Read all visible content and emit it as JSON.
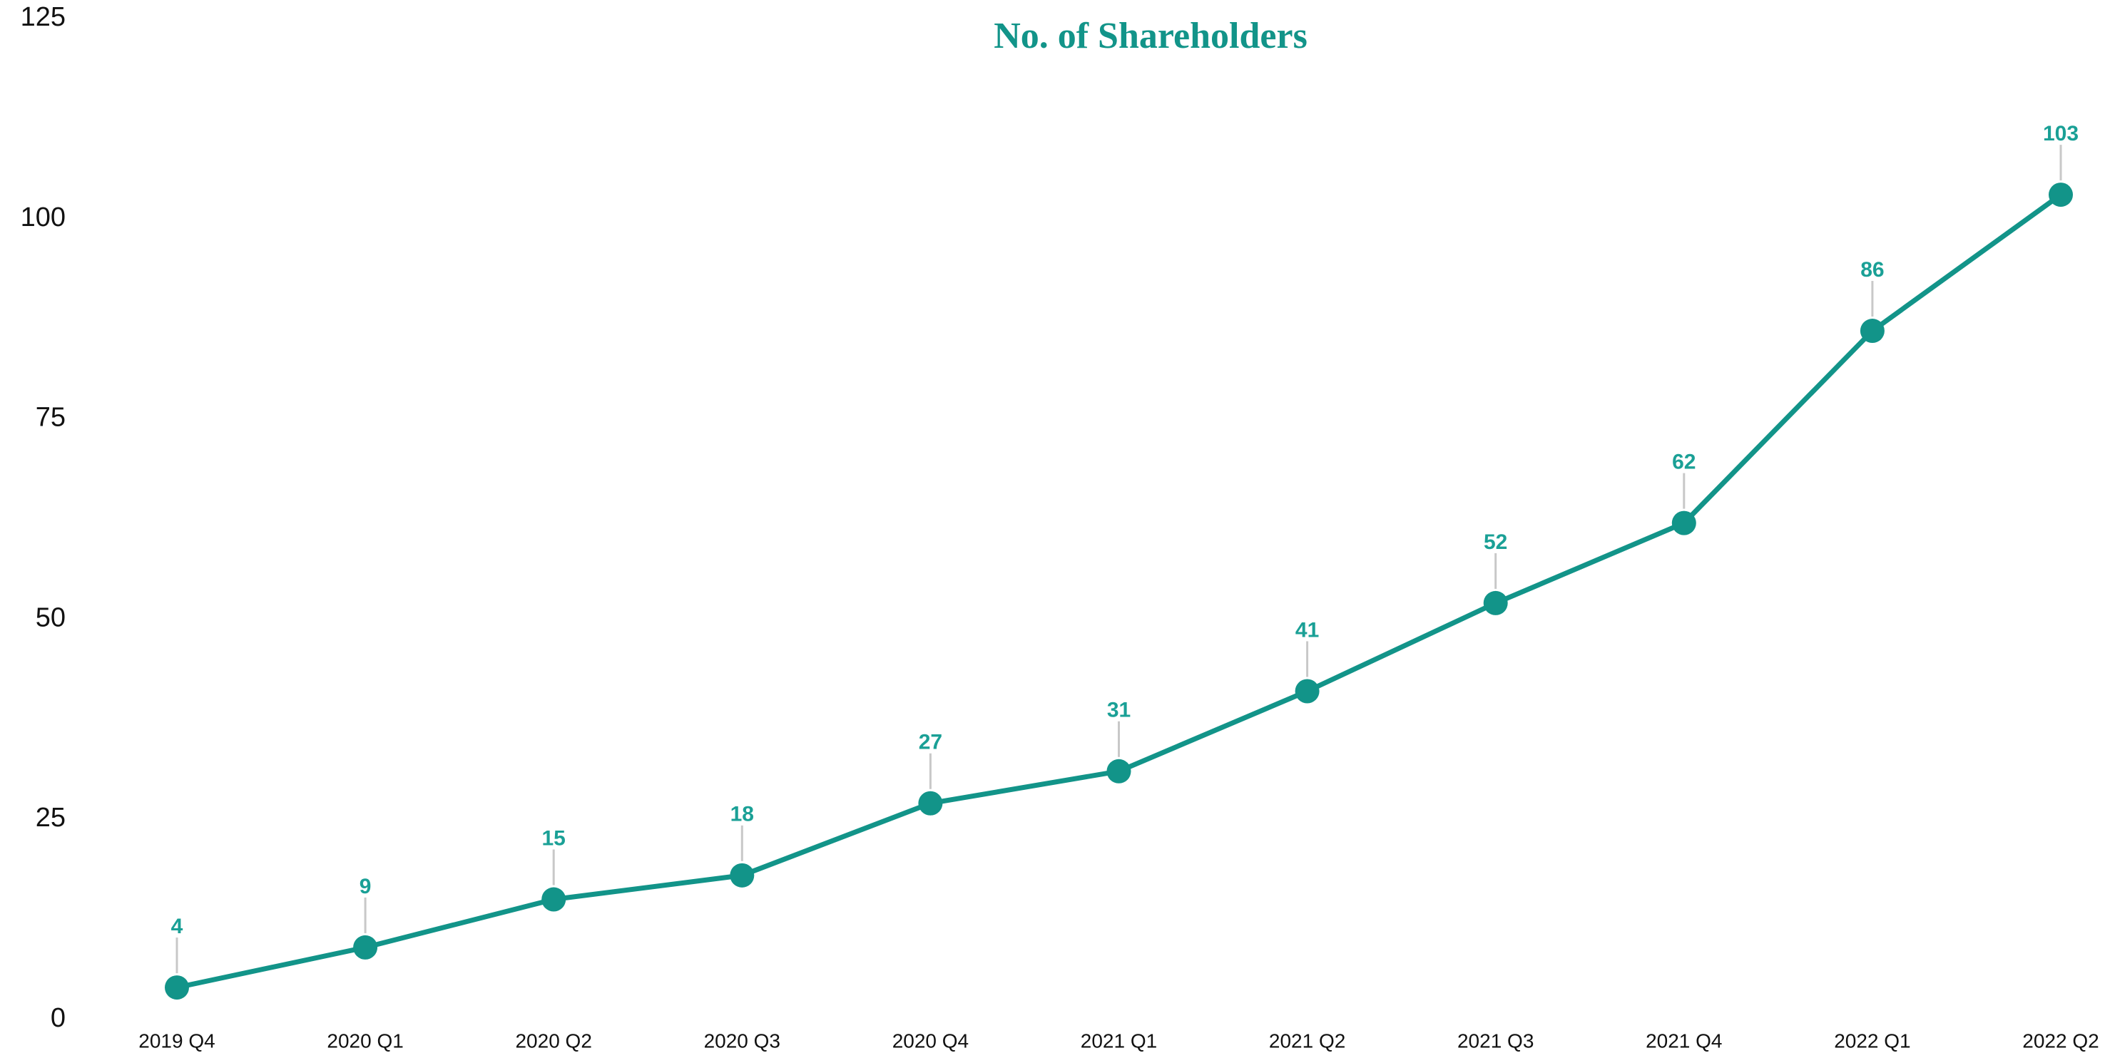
{
  "chart_data": {
    "type": "line",
    "title": "No. of Shareholders",
    "categories": [
      "2019 Q4",
      "2020 Q1",
      "2020 Q2",
      "2020 Q3",
      "2020 Q4",
      "2021 Q1",
      "2021 Q2",
      "2021 Q3",
      "2021 Q4",
      "2022 Q1",
      "2022 Q2"
    ],
    "series": [
      {
        "name": "No. of Shareholders",
        "color": "#129489",
        "values": [
          4,
          9,
          15,
          18,
          27,
          31,
          41,
          52,
          62,
          86,
          103
        ]
      }
    ],
    "ylim": [
      0,
      125
    ],
    "yticks": [
      0,
      25,
      50,
      75,
      100,
      125
    ],
    "grid": false,
    "legend": false,
    "data_labels": true
  }
}
